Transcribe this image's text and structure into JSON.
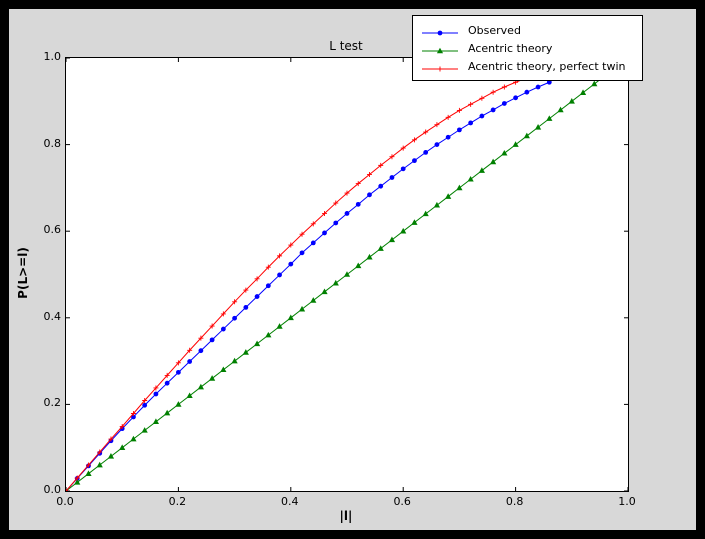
{
  "figure": {
    "colors": {
      "frame": "#000000",
      "figure_bg": "#d8d8d8",
      "axes_bg": "#ffffff",
      "axes_border": "#000000",
      "text": "#000000"
    }
  },
  "chart_data": {
    "type": "line",
    "title": "L test",
    "xlabel": "|l|",
    "ylabel": "P(L>=l)",
    "xlim": [
      0.0,
      1.0
    ],
    "ylim": [
      0.0,
      1.0
    ],
    "grid": false,
    "legend_position": "upper right",
    "xticks": {
      "values": [
        0.0,
        0.2,
        0.4,
        0.6,
        0.8,
        1.0
      ],
      "labels": [
        "0.0",
        "0.2",
        "0.4",
        "0.6",
        "0.8",
        "1.0"
      ]
    },
    "yticks": {
      "values": [
        0.0,
        0.2,
        0.4,
        0.6,
        0.8,
        1.0
      ],
      "labels": [
        "0.0",
        "0.2",
        "0.4",
        "0.6",
        "0.8",
        "1.0"
      ]
    },
    "series": [
      {
        "name": "Observed",
        "color": "#0000ff",
        "marker": "circle",
        "x": [
          0.0,
          0.02,
          0.04,
          0.06,
          0.08,
          0.1,
          0.12,
          0.14,
          0.16,
          0.18,
          0.2,
          0.22,
          0.24,
          0.26,
          0.28,
          0.3,
          0.32,
          0.34,
          0.36,
          0.38,
          0.4,
          0.42,
          0.44,
          0.46,
          0.48,
          0.5,
          0.52,
          0.54,
          0.56,
          0.58,
          0.6,
          0.62,
          0.64,
          0.66,
          0.68,
          0.7,
          0.72,
          0.74,
          0.76,
          0.78,
          0.8,
          0.82,
          0.84,
          0.86
        ],
        "y": [
          0.0,
          0.029,
          0.058,
          0.087,
          0.116,
          0.144,
          0.171,
          0.198,
          0.224,
          0.249,
          0.274,
          0.299,
          0.324,
          0.349,
          0.374,
          0.399,
          0.424,
          0.449,
          0.474,
          0.499,
          0.524,
          0.55,
          0.573,
          0.596,
          0.619,
          0.641,
          0.662,
          0.684,
          0.704,
          0.724,
          0.744,
          0.763,
          0.782,
          0.8,
          0.817,
          0.834,
          0.85,
          0.866,
          0.88,
          0.895,
          0.908,
          0.921,
          0.933,
          0.944
        ]
      },
      {
        "name": "Acentric theory",
        "color": "#008000",
        "marker": "triangle",
        "x": [
          0.0,
          0.02,
          0.04,
          0.06,
          0.08,
          0.1,
          0.12,
          0.14,
          0.16,
          0.18,
          0.2,
          0.22,
          0.24,
          0.26,
          0.28,
          0.3,
          0.32,
          0.34,
          0.36,
          0.38,
          0.4,
          0.42,
          0.44,
          0.46,
          0.48,
          0.5,
          0.52,
          0.54,
          0.56,
          0.58,
          0.6,
          0.62,
          0.64,
          0.66,
          0.68,
          0.7,
          0.72,
          0.74,
          0.76,
          0.78,
          0.8,
          0.82,
          0.84,
          0.86,
          0.88,
          0.9,
          0.92,
          0.94,
          0.96
        ],
        "y": [
          0.0,
          0.02,
          0.04,
          0.06,
          0.08,
          0.1,
          0.12,
          0.14,
          0.16,
          0.18,
          0.2,
          0.22,
          0.24,
          0.26,
          0.28,
          0.3,
          0.32,
          0.34,
          0.36,
          0.38,
          0.4,
          0.42,
          0.44,
          0.46,
          0.48,
          0.5,
          0.52,
          0.54,
          0.56,
          0.58,
          0.6,
          0.62,
          0.64,
          0.66,
          0.68,
          0.7,
          0.72,
          0.74,
          0.76,
          0.78,
          0.8,
          0.82,
          0.84,
          0.86,
          0.88,
          0.9,
          0.92,
          0.94,
          0.96
        ]
      },
      {
        "name": "Acentric theory, perfect twin",
        "color": "#ff0000",
        "marker": "plus",
        "x": [
          0.0,
          0.02,
          0.04,
          0.06,
          0.08,
          0.1,
          0.12,
          0.14,
          0.16,
          0.18,
          0.2,
          0.22,
          0.24,
          0.26,
          0.28,
          0.3,
          0.32,
          0.34,
          0.36,
          0.38,
          0.4,
          0.42,
          0.44,
          0.46,
          0.48,
          0.5,
          0.52,
          0.54,
          0.56,
          0.58,
          0.6,
          0.62,
          0.64,
          0.66,
          0.68,
          0.7,
          0.72,
          0.74,
          0.76,
          0.78,
          0.8,
          0.82,
          0.84,
          0.86,
          0.88
        ],
        "y": [
          0.0,
          0.03,
          0.06,
          0.09,
          0.12,
          0.149,
          0.179,
          0.209,
          0.238,
          0.267,
          0.296,
          0.325,
          0.353,
          0.381,
          0.409,
          0.437,
          0.464,
          0.49,
          0.517,
          0.543,
          0.568,
          0.593,
          0.617,
          0.641,
          0.665,
          0.688,
          0.71,
          0.731,
          0.752,
          0.772,
          0.792,
          0.811,
          0.829,
          0.846,
          0.863,
          0.879,
          0.893,
          0.907,
          0.921,
          0.933,
          0.944,
          0.954,
          0.964,
          0.972,
          0.979
        ]
      }
    ]
  }
}
